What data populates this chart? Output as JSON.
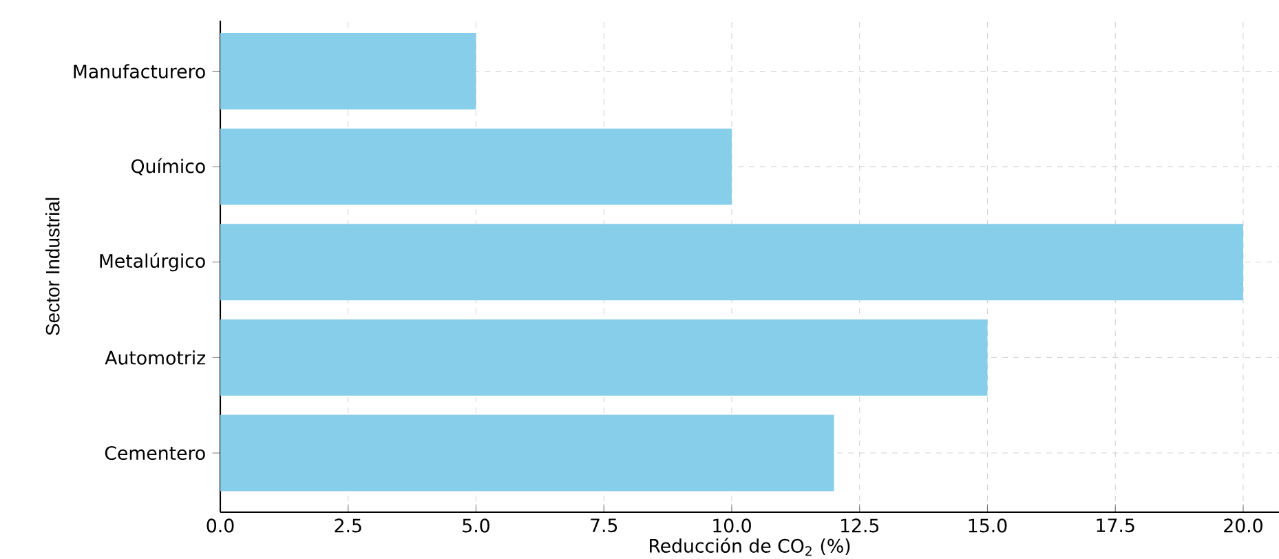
{
  "chart_data": {
    "type": "bar",
    "orientation": "horizontal",
    "xlabel": "Reducción de CO$_{2}$ (%)",
    "ylabel": "Sector Industrial",
    "categories": [
      "Manufacturero",
      "Químico",
      "Metalúrgico",
      "Automotriz",
      "Cementero"
    ],
    "values": [
      5,
      10,
      20,
      15,
      12
    ],
    "color": "#87ceeb",
    "xlim": [
      0,
      20.7
    ],
    "xticks": [
      {
        "value": 0,
        "label": "0.0"
      },
      {
        "value": 2.5,
        "label": "2.5"
      },
      {
        "value": 5,
        "label": "5.0"
      },
      {
        "value": 7.5,
        "label": "7.5"
      },
      {
        "value": 10,
        "label": "10.0"
      },
      {
        "value": 12.5,
        "label": "12.5"
      },
      {
        "value": 15,
        "label": "15.0"
      },
      {
        "value": 17.5,
        "label": "17.5"
      },
      {
        "value": 20,
        "label": "20.0"
      }
    ],
    "grid": true
  }
}
